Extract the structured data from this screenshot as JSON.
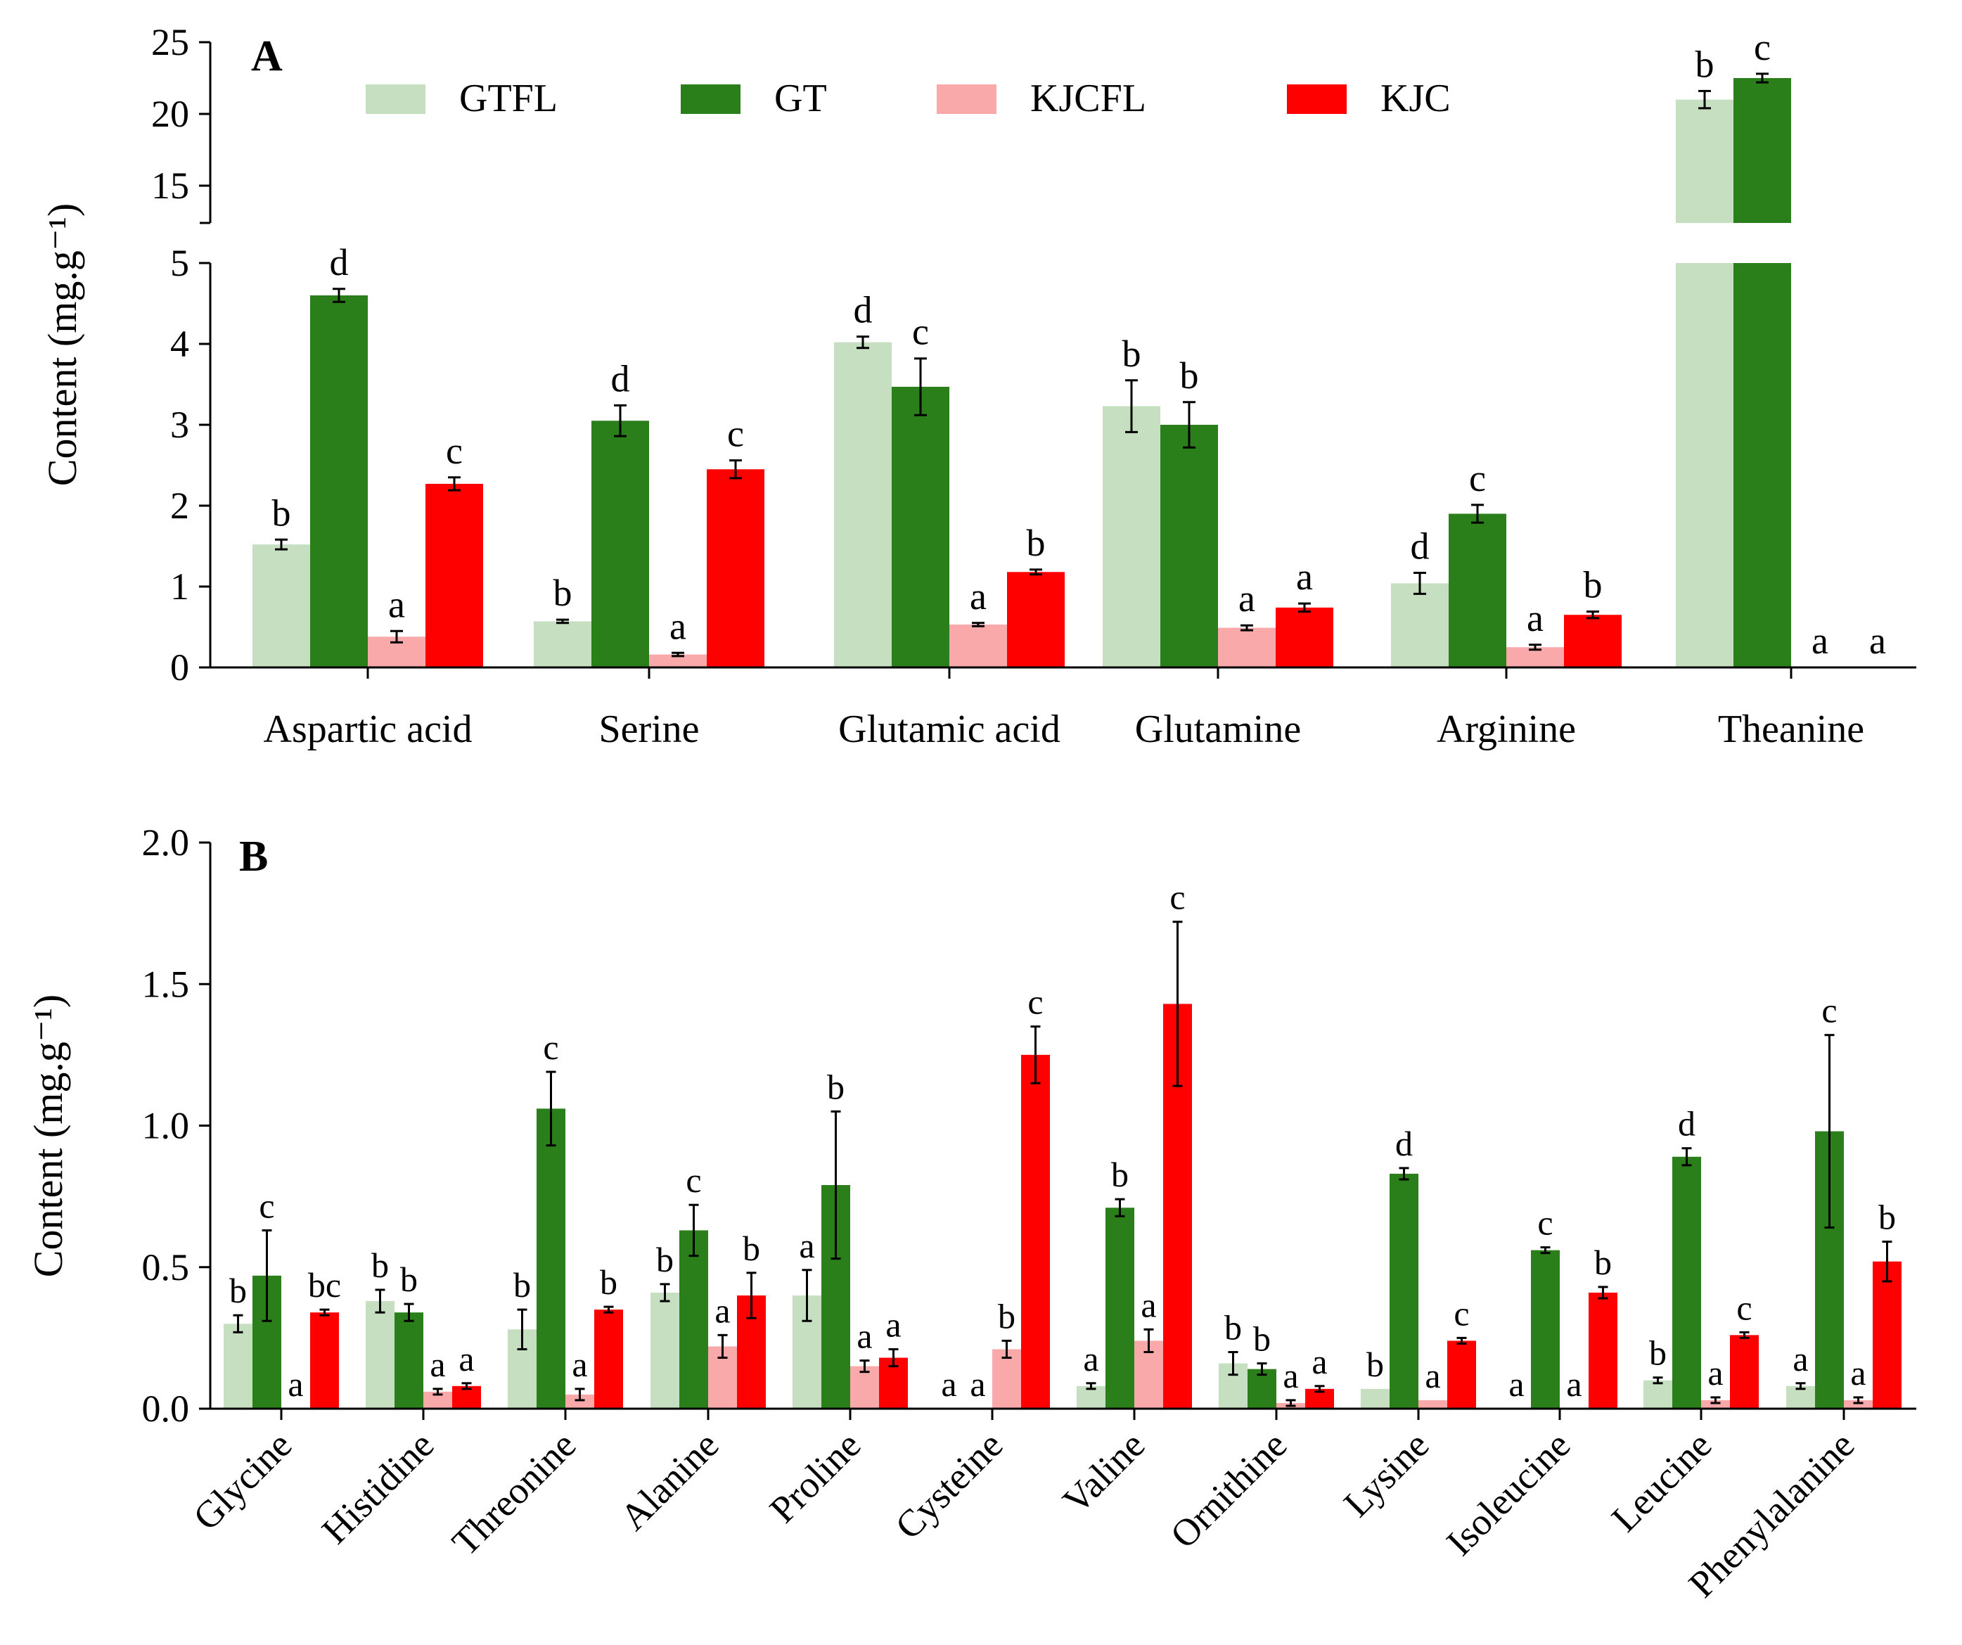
{
  "colors": {
    "GTFL": "#c5dfc0",
    "GT": "#2a7f1a",
    "KJCFL": "#f9a9a9",
    "KJC": "#fe0000"
  },
  "legend": [
    "GTFL",
    "GT",
    "KJCFL",
    "KJC"
  ],
  "chart_data": [
    {
      "type": "bar",
      "panel_label": "A",
      "ylabel": "Content (mg.g⁻¹)",
      "axis_break": {
        "lower_range": [
          0,
          5
        ],
        "upper_range": [
          12.5,
          25
        ]
      },
      "yticks_lower": [
        "0",
        "1",
        "2",
        "3",
        "4",
        "5"
      ],
      "yticks_upper": [
        "15",
        "20",
        "25"
      ],
      "categories": [
        "Aspartic acid",
        "Serine",
        "Glutamic acid",
        "Glutamine",
        "Arginine",
        "Theanine"
      ],
      "series": [
        {
          "name": "GTFL",
          "values": [
            1.52,
            0.57,
            4.02,
            3.23,
            1.04,
            21.0
          ],
          "errors": [
            0.06,
            0.02,
            0.07,
            0.32,
            0.13,
            0.6
          ],
          "letters": [
            "b",
            "b",
            "d",
            "b",
            "d",
            "b"
          ]
        },
        {
          "name": "GT",
          "values": [
            4.6,
            3.05,
            3.47,
            3.0,
            1.9,
            22.5
          ],
          "errors": [
            0.08,
            0.19,
            0.35,
            0.28,
            0.11,
            0.3
          ],
          "letters": [
            "d",
            "d",
            "c",
            "b",
            "c",
            "c"
          ]
        },
        {
          "name": "KJCFL",
          "values": [
            0.38,
            0.16,
            0.53,
            0.49,
            0.25,
            0
          ],
          "errors": [
            0.07,
            0.02,
            0.02,
            0.03,
            0.03,
            0
          ],
          "letters": [
            "a",
            "a",
            "a",
            "a",
            "a",
            "a"
          ]
        },
        {
          "name": "KJC",
          "values": [
            2.27,
            2.45,
            1.18,
            0.74,
            0.65,
            0
          ],
          "errors": [
            0.08,
            0.11,
            0.03,
            0.05,
            0.04,
            0
          ],
          "letters": [
            "c",
            "c",
            "b",
            "a",
            "b",
            "a"
          ]
        }
      ]
    },
    {
      "type": "bar",
      "panel_label": "B",
      "ylabel": "Content (mg.g⁻¹)",
      "ylim": [
        0,
        2.0
      ],
      "yticks": [
        "0.0",
        "0.5",
        "1.0",
        "1.5",
        "2.0"
      ],
      "categories": [
        "Glycine",
        "Histidine",
        "Threonine",
        "Alanine",
        "Proline",
        "Cysteine",
        "Valine",
        "Ornithine",
        "Lysine",
        "Isoleucine",
        "Leucine",
        "Phenylalanine"
      ],
      "series": [
        {
          "name": "GTFL",
          "values": [
            0.3,
            0.38,
            0.28,
            0.41,
            0.4,
            0,
            0.08,
            0.16,
            0.07,
            0,
            0.1,
            0.08
          ],
          "errors": [
            0.03,
            0.04,
            0.07,
            0.03,
            0.09,
            0,
            0.01,
            0.04,
            0,
            0,
            0.01,
            0.01
          ],
          "letters": [
            "b",
            "b",
            "b",
            "b",
            "a",
            "a",
            "a",
            "b",
            "b",
            "a",
            "b",
            "a"
          ]
        },
        {
          "name": "GT",
          "values": [
            0.47,
            0.34,
            1.06,
            0.63,
            0.79,
            0,
            0.71,
            0.14,
            0.83,
            0.56,
            0.89,
            0.98
          ],
          "errors": [
            0.16,
            0.03,
            0.13,
            0.09,
            0.26,
            0,
            0.03,
            0.02,
            0.02,
            0.01,
            0.03,
            0.34
          ],
          "letters": [
            "c",
            "b",
            "c",
            "c",
            "b",
            "a",
            "b",
            "b",
            "d",
            "c",
            "d",
            "c"
          ]
        },
        {
          "name": "KJCFL",
          "values": [
            0,
            0.06,
            0.05,
            0.22,
            0.15,
            0.21,
            0.24,
            0.02,
            0.03,
            0,
            0.03,
            0.03
          ],
          "errors": [
            0,
            0.01,
            0.02,
            0.04,
            0.02,
            0.03,
            0.04,
            0.01,
            0,
            0,
            0.01,
            0.01
          ],
          "letters": [
            "a",
            "a",
            "a",
            "a",
            "a",
            "b",
            "a",
            "a",
            "a",
            "a",
            "a",
            "a"
          ]
        },
        {
          "name": "KJC",
          "values": [
            0.34,
            0.08,
            0.35,
            0.4,
            0.18,
            1.25,
            1.43,
            0.07,
            0.24,
            0.41,
            0.26,
            0.52
          ],
          "errors": [
            0.01,
            0.01,
            0.01,
            0.08,
            0.03,
            0.1,
            0.29,
            0.01,
            0.01,
            0.02,
            0.01,
            0.07
          ],
          "letters": [
            "bc",
            "a",
            "b",
            "b",
            "a",
            "c",
            "c",
            "a",
            "c",
            "b",
            "c",
            "b"
          ]
        }
      ]
    }
  ]
}
